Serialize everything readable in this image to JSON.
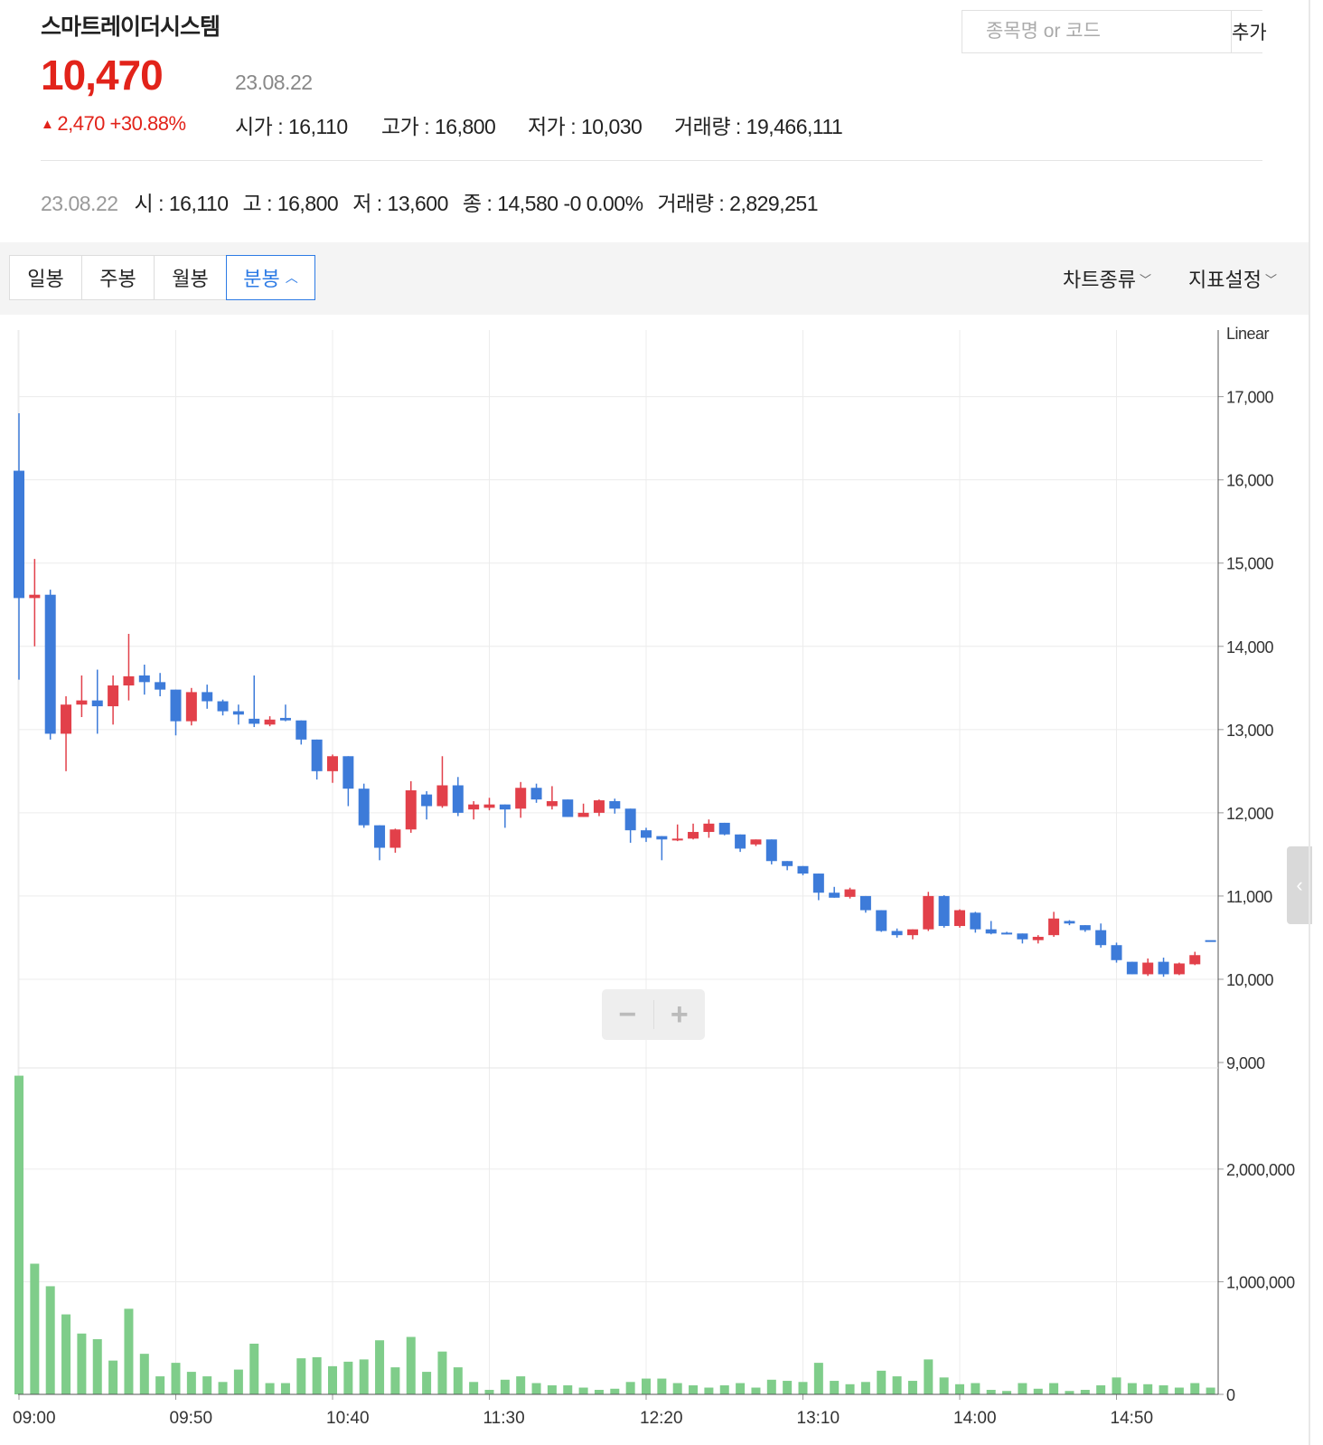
{
  "stock": {
    "name": "스마트레이더시스템",
    "price": "10,470",
    "date": "23.08.22",
    "change": "2,470",
    "change_pct": "+30.88%",
    "change_arrow": "▲",
    "open_label": "시가 : 16,110",
    "high_label": "고가 : 16,800",
    "low_label": "저가 : 10,030",
    "volume_label": "거래량 : 19,466,111"
  },
  "search": {
    "placeholder": "종목명 or 코드",
    "button": "추가"
  },
  "ohlc_line": {
    "date": "23.08.22",
    "open": "시 : 16,110",
    "high": "고 : 16,800",
    "low": "저 : 13,600",
    "close": "종 : 14,580 -0 0.00%",
    "volume": "거래량 : 2,829,251"
  },
  "tabs": [
    {
      "label": "일봉"
    },
    {
      "label": "주봉"
    },
    {
      "label": "월봉"
    },
    {
      "label": "분봉",
      "active": true
    }
  ],
  "menus": {
    "chart_type": "차트종류",
    "indicator": "지표설정"
  },
  "colors": {
    "up": "#e2404a",
    "down": "#3d7bd9",
    "volume": "#7fcd8a",
    "accent": "#2d7be5",
    "price": "#e2231a"
  },
  "icons": {
    "zoom_out": "minus-icon",
    "zoom_in": "plus-icon",
    "collapse": "chevron-left-icon"
  },
  "zoom": {
    "minus": "−",
    "plus": "+"
  },
  "chart_data": {
    "type": "candlestick",
    "scale_label": "Linear",
    "price_axis": {
      "ticks": [
        "17,000",
        "16,000",
        "15,000",
        "14,000",
        "13,000",
        "12,000",
        "11,000",
        "10,000",
        "9,000"
      ],
      "ylim": [
        9000,
        17800
      ]
    },
    "volume_axis": {
      "ticks": [
        "2,000,000",
        "1,000,000",
        "0"
      ],
      "ylim": [
        0,
        2850000
      ]
    },
    "time_labels": [
      "09:00",
      "09:50",
      "10:40",
      "11:30",
      "12:20",
      "13:10",
      "14:00",
      "14:50"
    ],
    "interval_minutes": 5,
    "candles": [
      {
        "o": 16110,
        "h": 16800,
        "l": 13600,
        "c": 14580,
        "v": 2829251
      },
      {
        "o": 14580,
        "h": 15050,
        "l": 14000,
        "c": 14620,
        "v": 1160000
      },
      {
        "o": 14620,
        "h": 14680,
        "l": 12880,
        "c": 12950,
        "v": 960000
      },
      {
        "o": 12950,
        "h": 13400,
        "l": 12500,
        "c": 13300,
        "v": 710000
      },
      {
        "o": 13300,
        "h": 13650,
        "l": 13150,
        "c": 13350,
        "v": 540000
      },
      {
        "o": 13350,
        "h": 13720,
        "l": 12950,
        "c": 13280,
        "v": 490000
      },
      {
        "o": 13280,
        "h": 13650,
        "l": 13060,
        "c": 13530,
        "v": 300000
      },
      {
        "o": 13530,
        "h": 14150,
        "l": 13350,
        "c": 13640,
        "v": 760000
      },
      {
        "o": 13650,
        "h": 13780,
        "l": 13420,
        "c": 13570,
        "v": 360000
      },
      {
        "o": 13570,
        "h": 13680,
        "l": 13400,
        "c": 13480,
        "v": 160000
      },
      {
        "o": 13480,
        "h": 13480,
        "l": 12930,
        "c": 13100,
        "v": 280000
      },
      {
        "o": 13100,
        "h": 13500,
        "l": 13050,
        "c": 13450,
        "v": 200000
      },
      {
        "o": 13450,
        "h": 13540,
        "l": 13250,
        "c": 13340,
        "v": 160000
      },
      {
        "o": 13340,
        "h": 13360,
        "l": 13170,
        "c": 13220,
        "v": 110000
      },
      {
        "o": 13220,
        "h": 13300,
        "l": 13060,
        "c": 13180,
        "v": 220000
      },
      {
        "o": 13130,
        "h": 13650,
        "l": 13030,
        "c": 13070,
        "v": 450000
      },
      {
        "o": 13060,
        "h": 13160,
        "l": 13040,
        "c": 13120,
        "v": 100000
      },
      {
        "o": 13140,
        "h": 13300,
        "l": 13100,
        "c": 13110,
        "v": 100000
      },
      {
        "o": 13110,
        "h": 13110,
        "l": 12820,
        "c": 12880,
        "v": 320000
      },
      {
        "o": 12880,
        "h": 12880,
        "l": 12400,
        "c": 12500,
        "v": 330000
      },
      {
        "o": 12500,
        "h": 12700,
        "l": 12360,
        "c": 12680,
        "v": 250000
      },
      {
        "o": 12680,
        "h": 12680,
        "l": 12080,
        "c": 12290,
        "v": 290000
      },
      {
        "o": 12290,
        "h": 12350,
        "l": 11820,
        "c": 11850,
        "v": 310000
      },
      {
        "o": 11850,
        "h": 11850,
        "l": 11430,
        "c": 11580,
        "v": 480000
      },
      {
        "o": 11580,
        "h": 11810,
        "l": 11520,
        "c": 11800,
        "v": 240000
      },
      {
        "o": 11800,
        "h": 12380,
        "l": 11760,
        "c": 12270,
        "v": 510000
      },
      {
        "o": 12220,
        "h": 12260,
        "l": 11920,
        "c": 12080,
        "v": 200000
      },
      {
        "o": 12080,
        "h": 12680,
        "l": 12060,
        "c": 12330,
        "v": 380000
      },
      {
        "o": 12330,
        "h": 12430,
        "l": 11960,
        "c": 12000,
        "v": 240000
      },
      {
        "o": 12040,
        "h": 12140,
        "l": 11920,
        "c": 12100,
        "v": 110000
      },
      {
        "o": 12060,
        "h": 12180,
        "l": 12030,
        "c": 12100,
        "v": 40000
      },
      {
        "o": 12100,
        "h": 12100,
        "l": 11820,
        "c": 12040,
        "v": 130000
      },
      {
        "o": 12050,
        "h": 12370,
        "l": 11940,
        "c": 12300,
        "v": 160000
      },
      {
        "o": 12300,
        "h": 12350,
        "l": 12120,
        "c": 12160,
        "v": 100000
      },
      {
        "o": 12080,
        "h": 12320,
        "l": 12040,
        "c": 12140,
        "v": 80000
      },
      {
        "o": 12160,
        "h": 12160,
        "l": 11950,
        "c": 11950,
        "v": 80000
      },
      {
        "o": 11950,
        "h": 12110,
        "l": 11950,
        "c": 12000,
        "v": 60000
      },
      {
        "o": 12000,
        "h": 12160,
        "l": 11960,
        "c": 12150,
        "v": 40000
      },
      {
        "o": 12140,
        "h": 12170,
        "l": 11990,
        "c": 12050,
        "v": 50000
      },
      {
        "o": 12050,
        "h": 12050,
        "l": 11640,
        "c": 11790,
        "v": 110000
      },
      {
        "o": 11790,
        "h": 11820,
        "l": 11650,
        "c": 11700,
        "v": 140000
      },
      {
        "o": 11720,
        "h": 11720,
        "l": 11430,
        "c": 11680,
        "v": 140000
      },
      {
        "o": 11680,
        "h": 11860,
        "l": 11660,
        "c": 11690,
        "v": 100000
      },
      {
        "o": 11690,
        "h": 11870,
        "l": 11680,
        "c": 11770,
        "v": 80000
      },
      {
        "o": 11770,
        "h": 11920,
        "l": 11700,
        "c": 11870,
        "v": 60000
      },
      {
        "o": 11880,
        "h": 11880,
        "l": 11730,
        "c": 11740,
        "v": 80000
      },
      {
        "o": 11740,
        "h": 11740,
        "l": 11530,
        "c": 11570,
        "v": 100000
      },
      {
        "o": 11620,
        "h": 11680,
        "l": 11600,
        "c": 11680,
        "v": 60000
      },
      {
        "o": 11680,
        "h": 11680,
        "l": 11380,
        "c": 11420,
        "v": 130000
      },
      {
        "o": 11420,
        "h": 11420,
        "l": 11310,
        "c": 11360,
        "v": 120000
      },
      {
        "o": 11360,
        "h": 11360,
        "l": 11250,
        "c": 11270,
        "v": 110000
      },
      {
        "o": 11270,
        "h": 11270,
        "l": 10950,
        "c": 11040,
        "v": 280000
      },
      {
        "o": 11040,
        "h": 11110,
        "l": 10980,
        "c": 10980,
        "v": 120000
      },
      {
        "o": 10990,
        "h": 11100,
        "l": 10970,
        "c": 11080,
        "v": 90000
      },
      {
        "o": 11000,
        "h": 11000,
        "l": 10800,
        "c": 10830,
        "v": 110000
      },
      {
        "o": 10830,
        "h": 10830,
        "l": 10570,
        "c": 10580,
        "v": 210000
      },
      {
        "o": 10580,
        "h": 10610,
        "l": 10500,
        "c": 10530,
        "v": 160000
      },
      {
        "o": 10530,
        "h": 10600,
        "l": 10480,
        "c": 10600,
        "v": 120000
      },
      {
        "o": 10600,
        "h": 11050,
        "l": 10580,
        "c": 11000,
        "v": 310000
      },
      {
        "o": 11000,
        "h": 11010,
        "l": 10620,
        "c": 10640,
        "v": 150000
      },
      {
        "o": 10640,
        "h": 10840,
        "l": 10620,
        "c": 10830,
        "v": 90000
      },
      {
        "o": 10800,
        "h": 10810,
        "l": 10560,
        "c": 10600,
        "v": 100000
      },
      {
        "o": 10600,
        "h": 10700,
        "l": 10540,
        "c": 10550,
        "v": 40000
      },
      {
        "o": 10560,
        "h": 10570,
        "l": 10540,
        "c": 10550,
        "v": 30000
      },
      {
        "o": 10550,
        "h": 10550,
        "l": 10430,
        "c": 10480,
        "v": 100000
      },
      {
        "o": 10470,
        "h": 10530,
        "l": 10430,
        "c": 10510,
        "v": 50000
      },
      {
        "o": 10530,
        "h": 10810,
        "l": 10510,
        "c": 10730,
        "v": 100000
      },
      {
        "o": 10700,
        "h": 10710,
        "l": 10650,
        "c": 10670,
        "v": 30000
      },
      {
        "o": 10650,
        "h": 10650,
        "l": 10570,
        "c": 10590,
        "v": 40000
      },
      {
        "o": 10590,
        "h": 10670,
        "l": 10380,
        "c": 10410,
        "v": 80000
      },
      {
        "o": 10410,
        "h": 10440,
        "l": 10200,
        "c": 10230,
        "v": 150000
      },
      {
        "o": 10210,
        "h": 10210,
        "l": 10060,
        "c": 10060,
        "v": 100000
      },
      {
        "o": 10060,
        "h": 10250,
        "l": 10040,
        "c": 10200,
        "v": 90000
      },
      {
        "o": 10210,
        "h": 10260,
        "l": 10030,
        "c": 10060,
        "v": 80000
      },
      {
        "o": 10060,
        "h": 10200,
        "l": 10050,
        "c": 10190,
        "v": 60000
      },
      {
        "o": 10180,
        "h": 10330,
        "l": 10170,
        "c": 10290,
        "v": 100000
      },
      {
        "o": 10470,
        "h": 10470,
        "l": 10470,
        "c": 10470,
        "v": 60000
      }
    ]
  }
}
